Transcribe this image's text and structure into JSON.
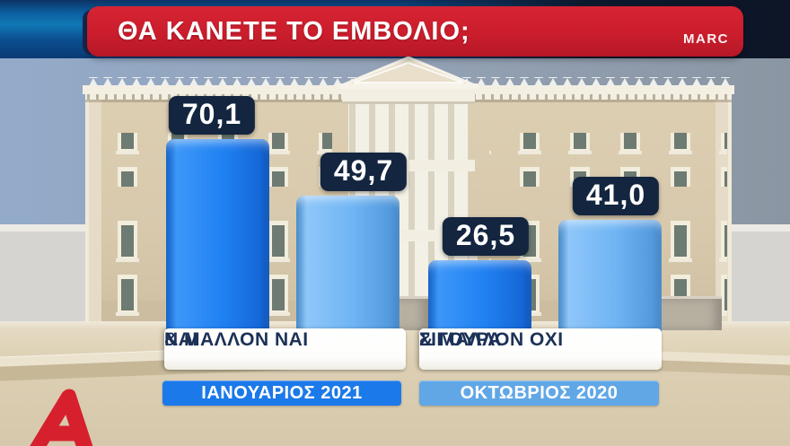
{
  "banner": {
    "title": "ΘΑ ΚΑΝΕΤΕ ΤΟ ΕΜΒΟΛΙΟ;",
    "source": "MARC",
    "bg_color": "#cb1d2c"
  },
  "chart_data": {
    "type": "bar",
    "title": "ΘΑ ΚΑΝΕΤΕ ΤΟ ΕΜΒΟΛΙΟ;",
    "unit": "percent",
    "ylim": [
      0,
      100
    ],
    "grid": false,
    "legend_position": "bottom",
    "categories": [
      [
        "ΝΑΙ",
        "& ΜΑΛΛΟΝ ΝΑΙ"
      ],
      [
        "ΣΙΓΟΥΡΑ",
        "& ΜΑΛΛΟΝ ΟΧΙ"
      ]
    ],
    "series": [
      {
        "name": "ΙΑΝΟΥΑΡΙΟΣ 2021",
        "color": "#1b79e9",
        "values": [
          70.1,
          26.5
        ],
        "display_labels": [
          "70,1",
          "26,5"
        ]
      },
      {
        "name": "ΟΚΤΩΒΡΙΟΣ 2020",
        "color": "#61a7e6",
        "values": [
          49.7,
          41.0
        ],
        "display_labels": [
          "49,7",
          "41,0"
        ]
      }
    ]
  },
  "branding": {
    "logo": "alpha-tv-logo",
    "logo_color": "#d7202d"
  },
  "scene": {
    "backdrop": "hellenic-parliament-illustration"
  }
}
